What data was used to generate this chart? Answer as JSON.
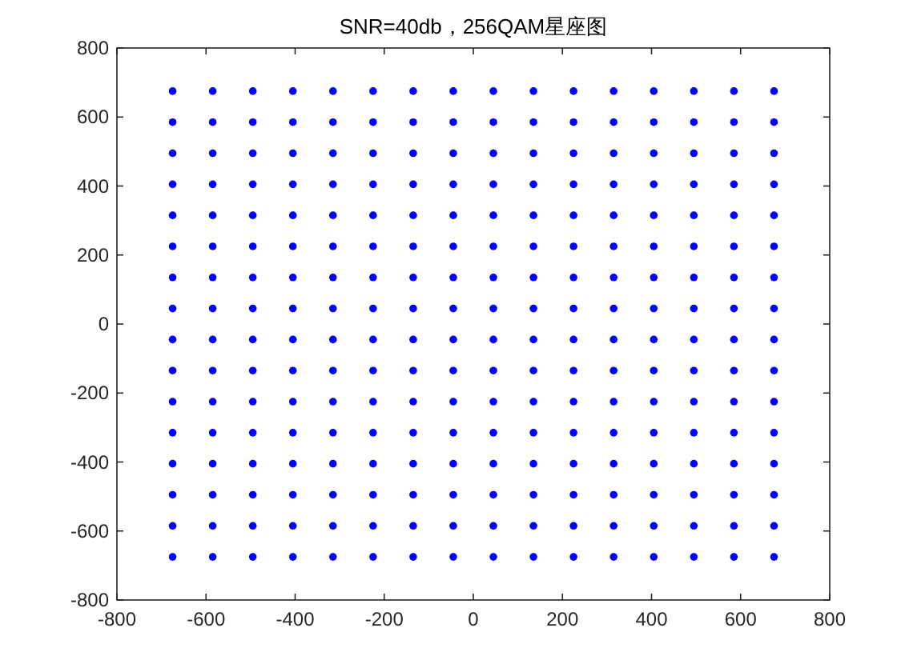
{
  "chart_data": {
    "type": "scatter",
    "title": "SNR=40db，256QAM星座图",
    "xlim": [
      -800,
      800
    ],
    "ylim": [
      -800,
      800
    ],
    "xticks": [
      -800,
      -600,
      -400,
      -200,
      0,
      200,
      400,
      600,
      800
    ],
    "yticks": [
      -800,
      -600,
      -400,
      -200,
      0,
      200,
      400,
      600,
      800
    ],
    "marker": "circle",
    "grid": false,
    "series": [
      {
        "color": "#0000ff",
        "x": [
          -675,
          -585,
          -495,
          -405,
          -315,
          -225,
          -135,
          -45,
          45,
          135,
          225,
          315,
          405,
          495,
          585,
          675,
          -675,
          -585,
          -495,
          -405,
          -315,
          -225,
          -135,
          -45,
          45,
          135,
          225,
          315,
          405,
          495,
          585,
          675,
          -675,
          -585,
          -495,
          -405,
          -315,
          -225,
          -135,
          -45,
          45,
          135,
          225,
          315,
          405,
          495,
          585,
          675,
          -675,
          -585,
          -495,
          -405,
          -315,
          -225,
          -135,
          -45,
          45,
          135,
          225,
          315,
          405,
          495,
          585,
          675,
          -675,
          -585,
          -495,
          -405,
          -315,
          -225,
          -135,
          -45,
          45,
          135,
          225,
          315,
          405,
          495,
          585,
          675,
          -675,
          -585,
          -495,
          -405,
          -315,
          -225,
          -135,
          -45,
          45,
          135,
          225,
          315,
          405,
          495,
          585,
          675,
          -675,
          -585,
          -495,
          -405,
          -315,
          -225,
          -135,
          -45,
          45,
          135,
          225,
          315,
          405,
          495,
          585,
          675,
          -675,
          -585,
          -495,
          -405,
          -315,
          -225,
          -135,
          -45,
          45,
          135,
          225,
          315,
          405,
          495,
          585,
          675,
          -675,
          -585,
          -495,
          -405,
          -315,
          -225,
          -135,
          -45,
          45,
          135,
          225,
          315,
          405,
          495,
          585,
          675,
          -675,
          -585,
          -495,
          -405,
          -315,
          -225,
          -135,
          -45,
          45,
          135,
          225,
          315,
          405,
          495,
          585,
          675,
          -675,
          -585,
          -495,
          -405,
          -315,
          -225,
          -135,
          -45,
          45,
          135,
          225,
          315,
          405,
          495,
          585,
          675,
          -675,
          -585,
          -495,
          -405,
          -315,
          -225,
          -135,
          -45,
          45,
          135,
          225,
          315,
          405,
          495,
          585,
          675,
          -675,
          -585,
          -495,
          -405,
          -315,
          -225,
          -135,
          -45,
          45,
          135,
          225,
          315,
          405,
          495,
          585,
          675,
          -675,
          -585,
          -495,
          -405,
          -315,
          -225,
          -135,
          -45,
          45,
          135,
          225,
          315,
          405,
          495,
          585,
          675,
          -675,
          -585,
          -495,
          -405,
          -315,
          -225,
          -135,
          -45,
          45,
          135,
          225,
          315,
          405,
          495,
          585,
          675,
          -675,
          -585,
          -495,
          -405,
          -315,
          -225,
          -135,
          -45,
          45,
          135,
          225,
          315,
          405,
          495,
          585,
          675
        ],
        "values": [
          675,
          675,
          675,
          675,
          675,
          675,
          675,
          675,
          675,
          675,
          675,
          675,
          675,
          675,
          675,
          675,
          585,
          585,
          585,
          585,
          585,
          585,
          585,
          585,
          585,
          585,
          585,
          585,
          585,
          585,
          585,
          585,
          495,
          495,
          495,
          495,
          495,
          495,
          495,
          495,
          495,
          495,
          495,
          495,
          495,
          495,
          495,
          495,
          405,
          405,
          405,
          405,
          405,
          405,
          405,
          405,
          405,
          405,
          405,
          405,
          405,
          405,
          405,
          405,
          315,
          315,
          315,
          315,
          315,
          315,
          315,
          315,
          315,
          315,
          315,
          315,
          315,
          315,
          315,
          315,
          225,
          225,
          225,
          225,
          225,
          225,
          225,
          225,
          225,
          225,
          225,
          225,
          225,
          225,
          225,
          225,
          135,
          135,
          135,
          135,
          135,
          135,
          135,
          135,
          135,
          135,
          135,
          135,
          135,
          135,
          135,
          135,
          45,
          45,
          45,
          45,
          45,
          45,
          45,
          45,
          45,
          45,
          45,
          45,
          45,
          45,
          45,
          45,
          -45,
          -45,
          -45,
          -45,
          -45,
          -45,
          -45,
          -45,
          -45,
          -45,
          -45,
          -45,
          -45,
          -45,
          -45,
          -45,
          -135,
          -135,
          -135,
          -135,
          -135,
          -135,
          -135,
          -135,
          -135,
          -135,
          -135,
          -135,
          -135,
          -135,
          -135,
          -135,
          -225,
          -225,
          -225,
          -225,
          -225,
          -225,
          -225,
          -225,
          -225,
          -225,
          -225,
          -225,
          -225,
          -225,
          -225,
          -225,
          -315,
          -315,
          -315,
          -315,
          -315,
          -315,
          -315,
          -315,
          -315,
          -315,
          -315,
          -315,
          -315,
          -315,
          -315,
          -315,
          -405,
          -405,
          -405,
          -405,
          -405,
          -405,
          -405,
          -405,
          -405,
          -405,
          -405,
          -405,
          -405,
          -405,
          -405,
          -405,
          -495,
          -495,
          -495,
          -495,
          -495,
          -495,
          -495,
          -495,
          -495,
          -495,
          -495,
          -495,
          -495,
          -495,
          -495,
          -495,
          -585,
          -585,
          -585,
          -585,
          -585,
          -585,
          -585,
          -585,
          -585,
          -585,
          -585,
          -585,
          -585,
          -585,
          -585,
          -585,
          -675,
          -675,
          -675,
          -675,
          -675,
          -675,
          -675,
          -675,
          -675,
          -675,
          -675,
          -675,
          -675,
          -675,
          -675,
          -675
        ]
      }
    ]
  }
}
